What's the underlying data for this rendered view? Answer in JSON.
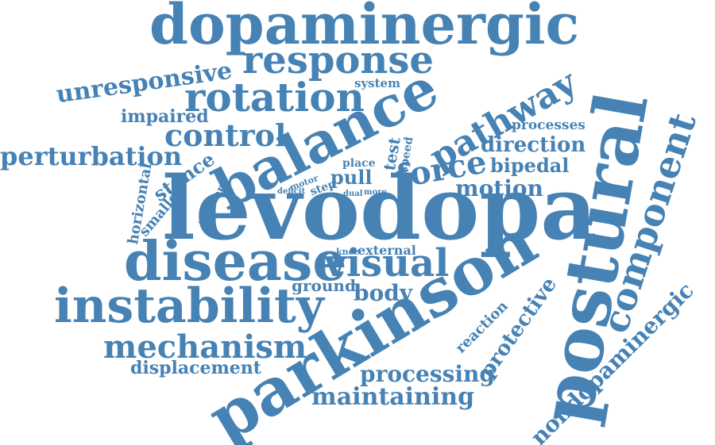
{
  "color": "#4682b4",
  "words": {
    "dopaminergic": "dopaminergic",
    "response": "response",
    "unresponsive": "unresponsive",
    "rotation": "rotation",
    "system": "system",
    "balance": "balance",
    "pathway": "pathway",
    "processes": "processes",
    "impaired": "impaired",
    "control": "control",
    "direction": "direction",
    "component": "component",
    "perturbation": "perturbation",
    "place": "place",
    "test": "test",
    "speed": "speed",
    "force": "force",
    "bipedal": "bipedal",
    "stance": "stance",
    "horizontal": "horizontal",
    "smaller": "smaller",
    "moment": "moment",
    "motor": "motor",
    "step": "step",
    "deficit": "deficit",
    "pull": "pull",
    "dual": "dual",
    "more": "more",
    "motion": "motion",
    "levodopa": "levodopa",
    "postural": "postural",
    "knee": "knee",
    "external": "external",
    "disease": "disease",
    "visual": "visual",
    "ground": "ground",
    "body": "body",
    "instability": "instability",
    "parkinson": "parkinson",
    "reaction": "reaction",
    "protective": "protective",
    "mechanism": "mechanism",
    "displacement": "displacement",
    "processing": "processing",
    "maintaining": "maintaining",
    "nondopaminergic": "nondopaminergic"
  }
}
